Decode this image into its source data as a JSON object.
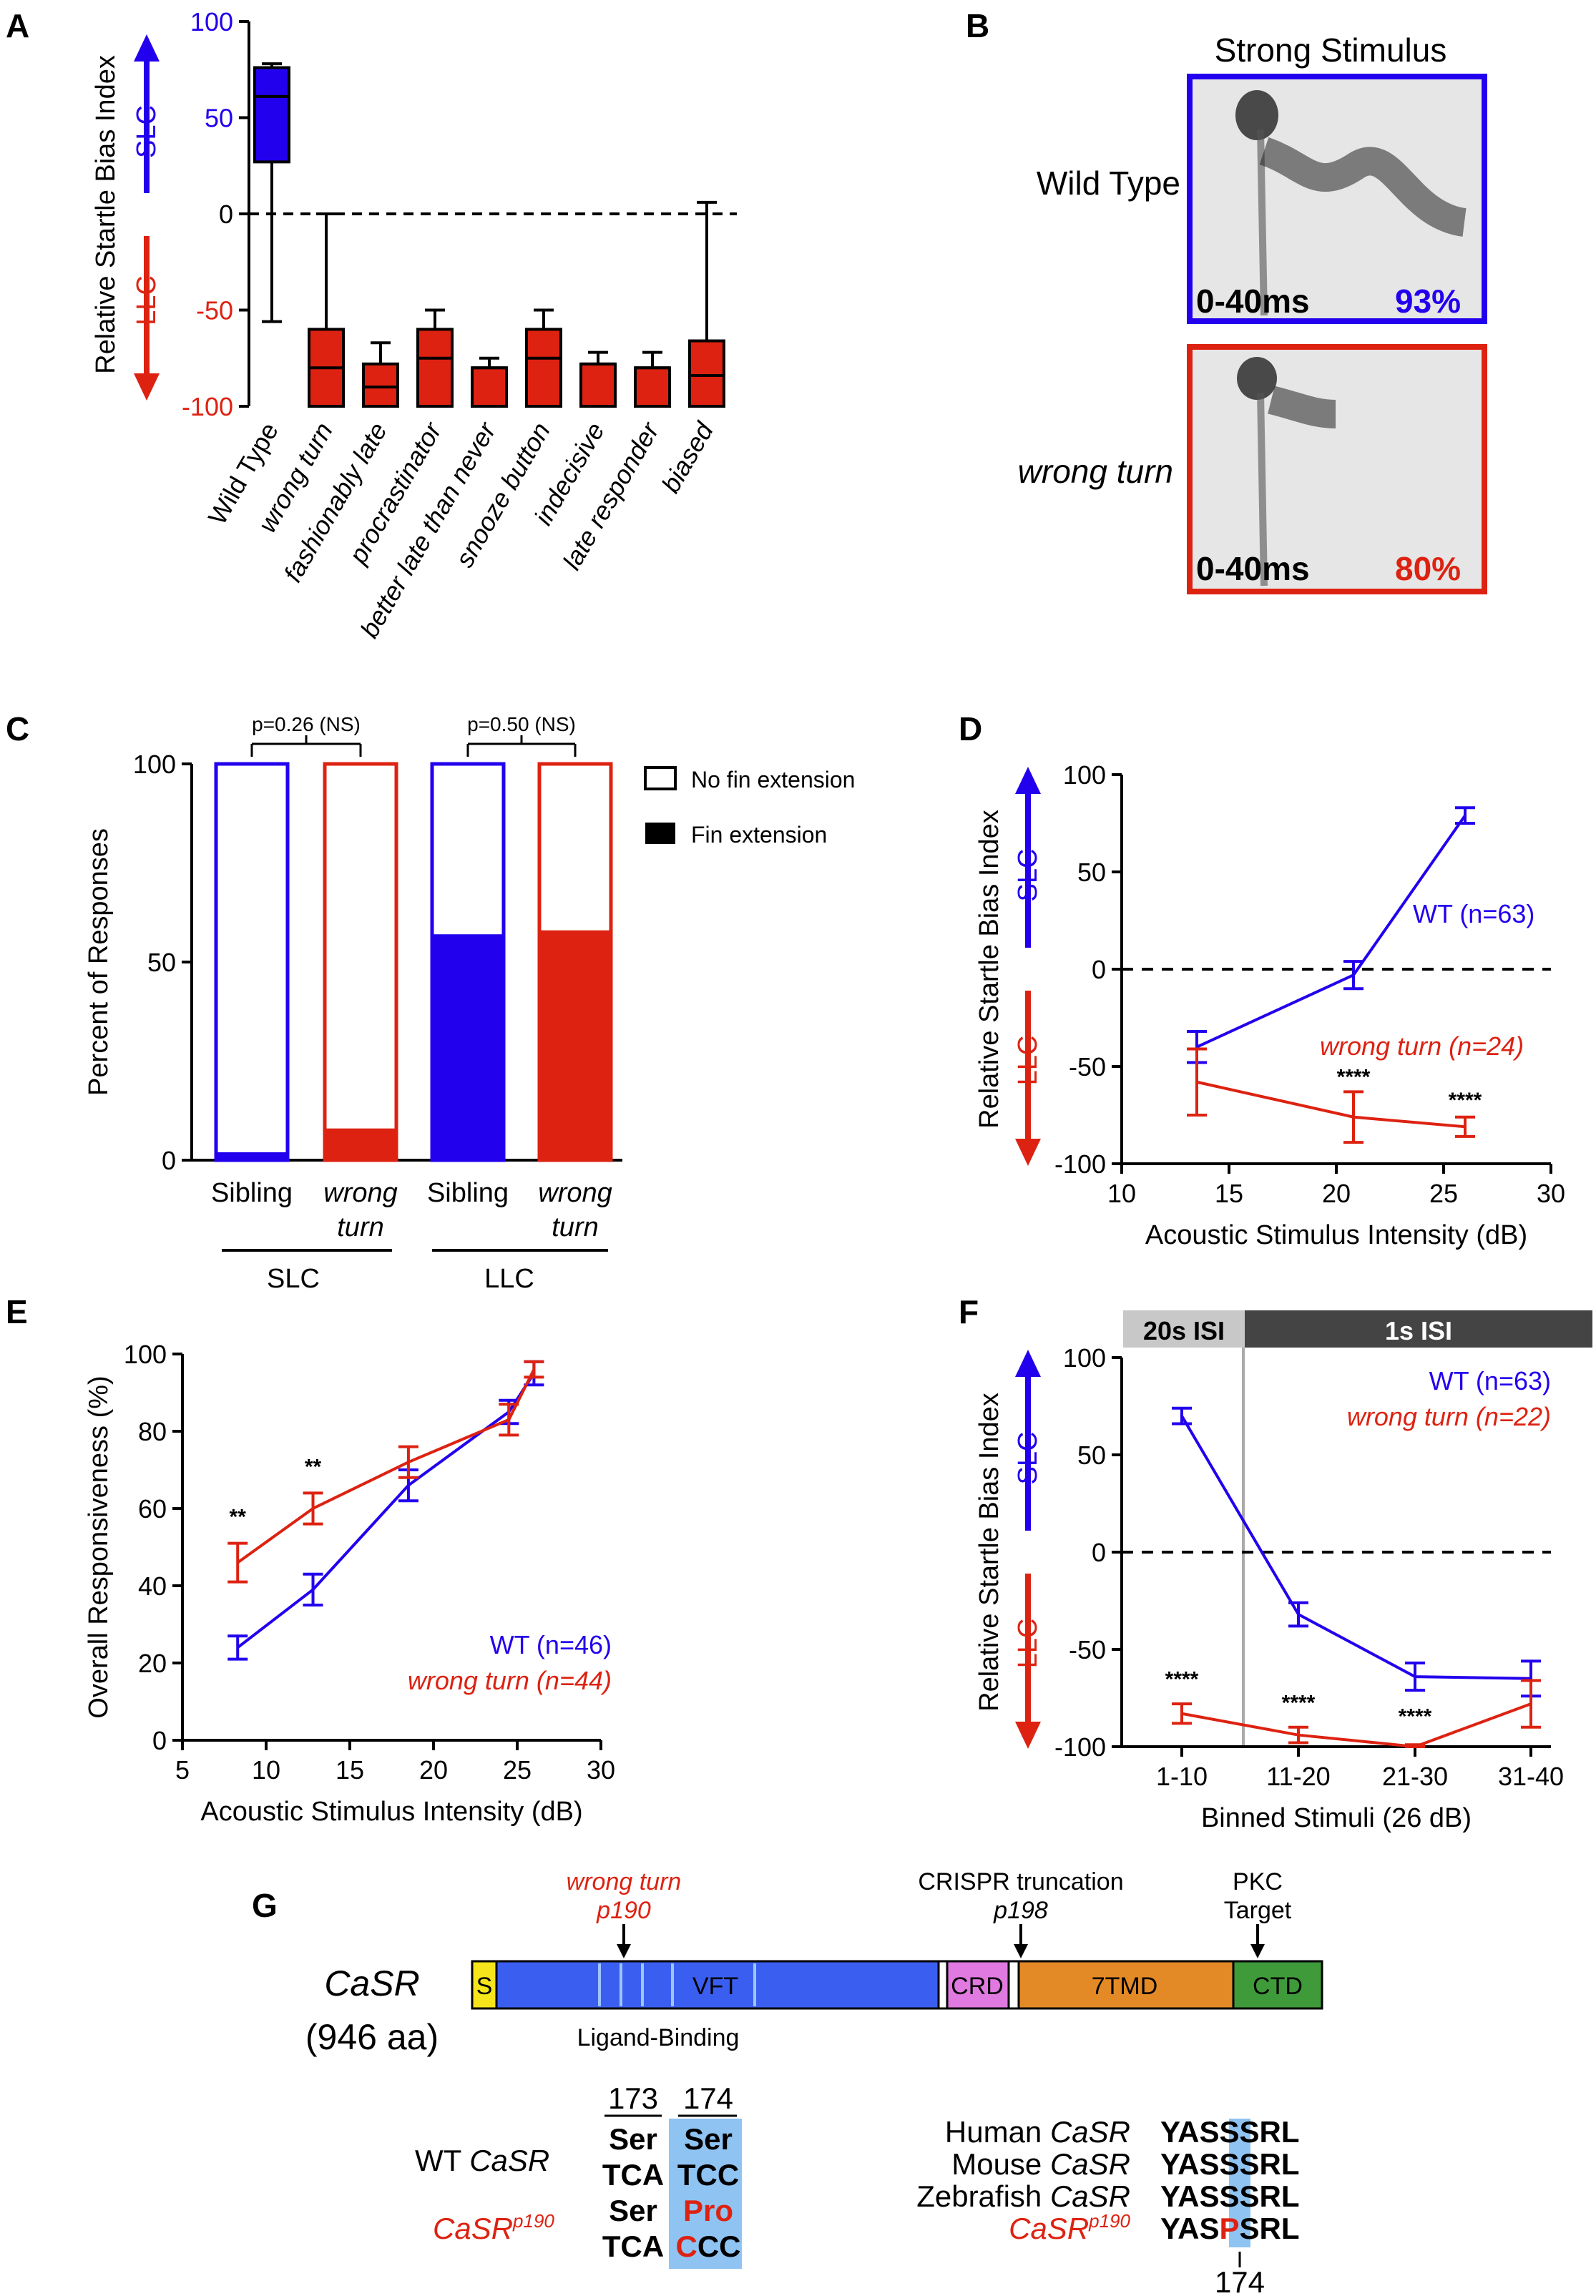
{
  "panels": {
    "A": "A",
    "B": "B",
    "C": "C",
    "D": "D",
    "E": "E",
    "F": "F",
    "G": "G"
  },
  "colors": {
    "wt": "#2200ee",
    "mutant": "#dd2211",
    "black": "#000000"
  },
  "chart_data": [
    {
      "panel": "A",
      "type": "box",
      "ylabel": "Relative Startle Bias Index",
      "ylim": [
        -100,
        100
      ],
      "yticks": [
        "100",
        "50",
        "0",
        "-50",
        "-100"
      ],
      "arrow_up_label": "SLC",
      "arrow_down_label": "LLC",
      "categories": [
        "Wild Type",
        "wrong turn",
        "fashionably late",
        "procrastinator",
        "better late than never",
        "snooze button",
        "indecisive",
        "late responder",
        "biased"
      ],
      "boxes": [
        {
          "min": -56,
          "q1": 27,
          "median": 61,
          "q3": 76,
          "max": 78,
          "color": "wt"
        },
        {
          "min": -100,
          "q1": -100,
          "median": -80,
          "q3": -60,
          "max": 0,
          "color": "mutant"
        },
        {
          "min": -100,
          "q1": -100,
          "median": -90,
          "q3": -78,
          "max": -67,
          "color": "mutant"
        },
        {
          "min": -100,
          "q1": -100,
          "median": -75,
          "q3": -60,
          "max": -50,
          "color": "mutant"
        },
        {
          "min": -100,
          "q1": -100,
          "median": -80,
          "q3": -80,
          "max": -75,
          "color": "mutant"
        },
        {
          "min": -100,
          "q1": -100,
          "median": -75,
          "q3": -60,
          "max": -50,
          "color": "mutant"
        },
        {
          "min": -100,
          "q1": -100,
          "median": -78,
          "q3": -78,
          "max": -72,
          "color": "mutant"
        },
        {
          "min": -100,
          "q1": -100,
          "median": -80,
          "q3": -80,
          "max": -72,
          "color": "mutant"
        },
        {
          "min": -100,
          "q1": -100,
          "median": -84,
          "q3": -66,
          "max": 6,
          "color": "mutant"
        }
      ]
    },
    {
      "panel": "C",
      "type": "bar",
      "ylabel": "Percent of Responses",
      "ylim": [
        0,
        100
      ],
      "yticks": [
        "0",
        "50",
        "100"
      ],
      "categories": [
        "Sibling",
        "wrong turn",
        "Sibling",
        "wrong turn"
      ],
      "groups": [
        "SLC",
        "LLC"
      ],
      "fin_extension_percent": [
        2,
        8,
        57,
        58
      ],
      "bar_colors": [
        "wt",
        "mutant",
        "wt",
        "mutant"
      ],
      "pvalues": [
        "p=0.26 (NS)",
        "p=0.50 (NS)"
      ],
      "legend": [
        "No fin extension",
        "Fin extension"
      ]
    },
    {
      "panel": "D",
      "type": "line",
      "xlabel": "Acoustic Stimulus Intensity (dB)",
      "ylabel": "Relative Startle Bias Index",
      "xlim": [
        10,
        30
      ],
      "ylim": [
        -100,
        100
      ],
      "xticks": [
        "10",
        "15",
        "20",
        "25",
        "30"
      ],
      "yticks": [
        "100",
        "50",
        "0",
        "-50",
        "-100"
      ],
      "arrow_up_label": "SLC",
      "arrow_down_label": "LLC",
      "series": [
        {
          "name": "WT (n=63)",
          "color": "wt",
          "x": [
            13.5,
            20.8,
            26
          ],
          "y": [
            -40,
            -3,
            79
          ],
          "err": [
            8,
            7,
            4
          ]
        },
        {
          "name": "wrong turn (n=24)",
          "color": "mutant",
          "x": [
            13.5,
            20.8,
            26
          ],
          "y": [
            -58,
            -76,
            -81
          ],
          "err": [
            17,
            13,
            5
          ]
        }
      ],
      "significance": [
        {
          "x": 20.8,
          "y": -59,
          "label": "****"
        },
        {
          "x": 26,
          "y": -71,
          "label": "****"
        }
      ]
    },
    {
      "panel": "E",
      "type": "line",
      "xlabel": "Acoustic Stimulus Intensity (dB)",
      "ylabel": "Overall Responsiveness (%)",
      "xlim": [
        5,
        30
      ],
      "ylim": [
        0,
        100
      ],
      "xticks": [
        "5",
        "10",
        "15",
        "20",
        "25",
        "30"
      ],
      "yticks": [
        "0",
        "20",
        "40",
        "60",
        "80",
        "100"
      ],
      "series": [
        {
          "name": "WT (n=46)",
          "color": "wt",
          "x": [
            8.3,
            12.8,
            18.5,
            24.5,
            26
          ],
          "y": [
            24,
            39,
            66,
            85,
            95
          ],
          "err": [
            3,
            4,
            4,
            3,
            3
          ]
        },
        {
          "name": "wrong turn (n=44)",
          "color": "mutant",
          "x": [
            8.3,
            12.8,
            18.5,
            24.5,
            26
          ],
          "y": [
            46,
            60,
            72,
            83,
            96
          ],
          "err": [
            5,
            4,
            4,
            4,
            2
          ]
        }
      ],
      "significance": [
        {
          "x": 8.3,
          "y": 56,
          "label": "**"
        },
        {
          "x": 12.8,
          "y": 69,
          "label": "**"
        }
      ]
    },
    {
      "panel": "F",
      "type": "line",
      "xlabel": "Binned Stimuli (26 dB)",
      "ylabel": "Relative Startle Bias Index",
      "ylim": [
        -100,
        100
      ],
      "categories": [
        "1-10",
        "11-20",
        "21-30",
        "31-40"
      ],
      "yticks": [
        "100",
        "50",
        "0",
        "-50",
        "-100"
      ],
      "arrow_up_label": "SLC",
      "arrow_down_label": "LLC",
      "isi_labels": [
        "20s ISI",
        "1s ISI"
      ],
      "series": [
        {
          "name": "WT (n=63)",
          "color": "wt",
          "y": [
            70,
            -32,
            -64,
            -65
          ],
          "err": [
            4,
            6,
            7,
            9
          ]
        },
        {
          "name": "wrong turn (n=22)",
          "color": "mutant",
          "y": [
            -83,
            -94,
            -100,
            -78
          ],
          "err": [
            5,
            4,
            1,
            12
          ]
        }
      ],
      "significance": [
        {
          "i": 0,
          "y": -69,
          "label": "****"
        },
        {
          "i": 1,
          "y": -81,
          "label": "****"
        },
        {
          "i": 2,
          "y": -88,
          "label": "****"
        }
      ]
    }
  ],
  "panelB": {
    "title": "Strong Stimulus",
    "row1_label": "Wild Type",
    "row2_label": "wrong turn",
    "time": "0-40ms",
    "pct_wt": "93%",
    "pct_mut": "80%"
  },
  "panelG": {
    "gene": "CaSR",
    "length": "(946 aa)",
    "domains": [
      "S",
      "VFT",
      "CRD",
      "7TMD",
      "CTD"
    ],
    "ligand_binding": "Ligand-Binding",
    "wrong_turn_label": "wrong turn",
    "wrong_turn_pos": "p190",
    "crispr_label": "CRISPR truncation",
    "crispr_pos": "p198",
    "pkc_label1": "PKC",
    "pkc_label2": "Target",
    "pos173": "173",
    "pos174": "174",
    "wt_label": "WT",
    "mut_label": "CaSR",
    "mut_sup": "p190",
    "ser": "Ser",
    "pro": "Pro",
    "codon_wt_173": "TCA",
    "codon_wt_174": "TCC",
    "codon_mut_173": "TCA",
    "codon_mut_174_a": "C",
    "codon_mut_174_b": "CC",
    "species": [
      "Human",
      "Mouse",
      "Zebrafish"
    ],
    "seq_prefix": "YAS",
    "seq_wt_res": "S",
    "seq_mut_res": "P",
    "seq_suffix": "SRL",
    "pos_bottom": "174"
  }
}
